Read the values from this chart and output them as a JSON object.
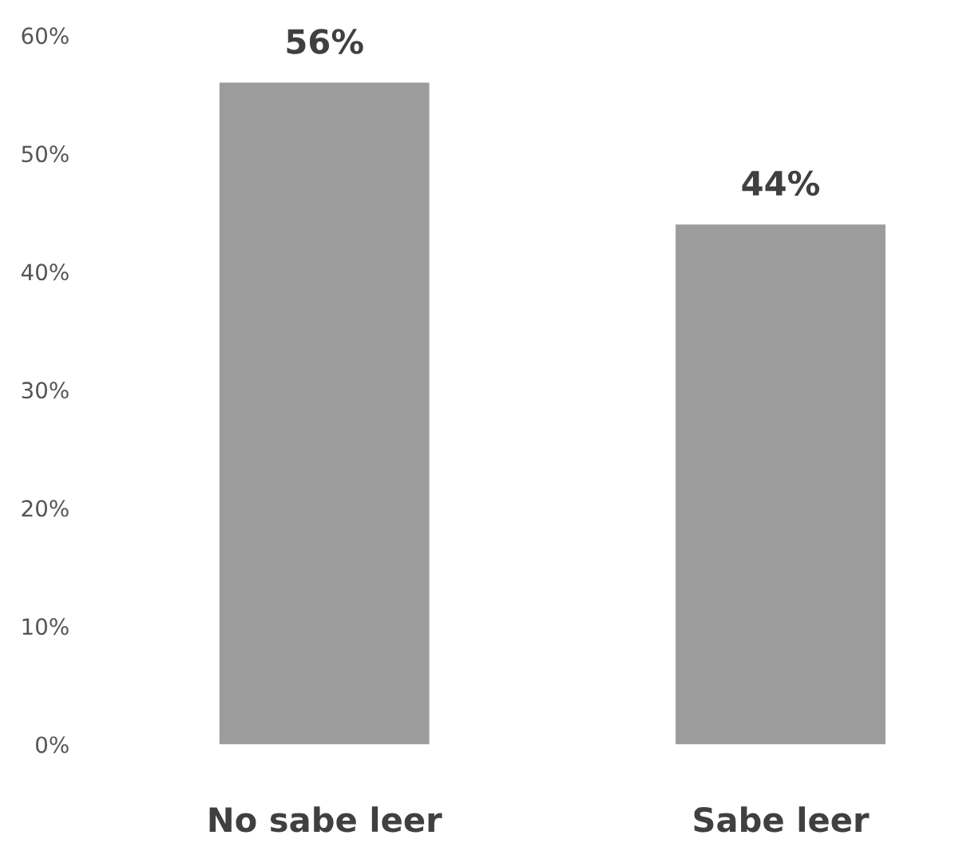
{
  "chart_data": {
    "type": "bar",
    "categories": [
      "No sabe leer",
      "Sabe leer"
    ],
    "values": [
      56,
      44
    ],
    "value_labels": [
      "56%",
      "44%"
    ],
    "color": "#9c9c9c",
    "ylim": [
      0,
      60
    ],
    "yticks": [
      {
        "value": 0,
        "label": "0%"
      },
      {
        "value": 10,
        "label": "10%"
      },
      {
        "value": 20,
        "label": "20%"
      },
      {
        "value": 30,
        "label": "30%"
      },
      {
        "value": 40,
        "label": "40%"
      },
      {
        "value": 50,
        "label": "50%"
      },
      {
        "value": 60,
        "label": "60%"
      }
    ],
    "grid": false
  }
}
